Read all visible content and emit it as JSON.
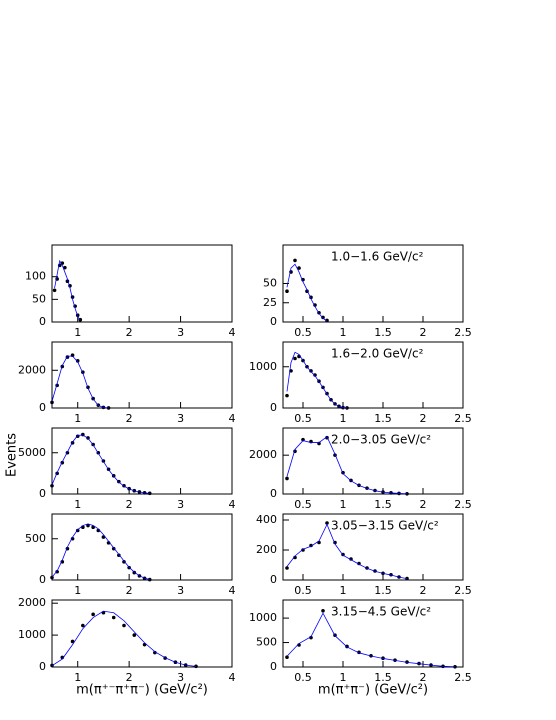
{
  "y_label": "Events",
  "chart_data": [
    {
      "type": "scatter",
      "xlim": [
        0.5,
        4
      ],
      "xticks": [
        1,
        2,
        3,
        4
      ],
      "ylim": [
        0,
        170
      ],
      "yticks": [
        0,
        50,
        100
      ],
      "x": [
        0.55,
        0.6,
        0.65,
        0.7,
        0.75,
        0.8,
        0.85,
        0.9,
        0.95,
        1.0,
        1.05
      ],
      "series": [
        {
          "color": "#000000",
          "values": [
            70,
            95,
            125,
            130,
            120,
            90,
            80,
            55,
            35,
            15,
            5
          ]
        },
        {
          "color": "#0000ff",
          "values": [
            75,
            105,
            135,
            125,
            110,
            95,
            75,
            50,
            30,
            12,
            4
          ]
        }
      ]
    },
    {
      "type": "scatter",
      "xlim": [
        0.25,
        2.5
      ],
      "xticks": [
        0.5,
        1,
        1.5,
        2,
        2.5
      ],
      "ylim": [
        0,
        100
      ],
      "yticks": [
        0,
        25,
        50
      ],
      "annotation": "1.0−1.6 GeV/c²",
      "x": [
        0.3,
        0.35,
        0.4,
        0.45,
        0.5,
        0.55,
        0.6,
        0.65,
        0.7,
        0.75,
        0.8
      ],
      "series": [
        {
          "color": "#000000",
          "values": [
            40,
            65,
            80,
            70,
            55,
            40,
            32,
            22,
            12,
            6,
            2
          ]
        },
        {
          "color": "#0000ff",
          "values": [
            45,
            70,
            75,
            65,
            52,
            42,
            30,
            20,
            11,
            5,
            1
          ]
        }
      ]
    },
    {
      "type": "scatter",
      "xlim": [
        0.5,
        4
      ],
      "xticks": [
        1,
        2,
        3,
        4
      ],
      "ylim": [
        0,
        3500
      ],
      "yticks": [
        0,
        2000
      ],
      "x": [
        0.5,
        0.6,
        0.7,
        0.8,
        0.9,
        1.0,
        1.1,
        1.2,
        1.3,
        1.4,
        1.5,
        1.6
      ],
      "series": [
        {
          "color": "#000000",
          "values": [
            300,
            1200,
            2200,
            2700,
            2800,
            2500,
            1900,
            1100,
            500,
            150,
            30,
            5
          ]
        },
        {
          "color": "#0000ff",
          "values": [
            350,
            1300,
            2250,
            2750,
            2750,
            2450,
            1850,
            1050,
            480,
            140,
            25,
            4
          ]
        }
      ]
    },
    {
      "type": "scatter",
      "xlim": [
        0.25,
        2.5
      ],
      "xticks": [
        0.5,
        1,
        1.5,
        2,
        2.5
      ],
      "ylim": [
        0,
        1600
      ],
      "yticks": [
        0,
        1000
      ],
      "annotation": "1.6−2.0 GeV/c²",
      "x": [
        0.3,
        0.35,
        0.4,
        0.45,
        0.5,
        0.55,
        0.6,
        0.65,
        0.7,
        0.75,
        0.8,
        0.85,
        0.9,
        0.95,
        1.0,
        1.05
      ],
      "series": [
        {
          "color": "#000000",
          "values": [
            300,
            900,
            1200,
            1250,
            1150,
            1000,
            900,
            800,
            650,
            500,
            350,
            200,
            100,
            40,
            10,
            2
          ]
        },
        {
          "color": "#0000ff",
          "values": [
            400,
            1100,
            1350,
            1300,
            1150,
            1000,
            880,
            780,
            640,
            490,
            340,
            190,
            95,
            35,
            8,
            2
          ]
        }
      ]
    },
    {
      "type": "scatter",
      "xlim": [
        0.5,
        4
      ],
      "xticks": [
        1,
        2,
        3,
        4
      ],
      "ylim": [
        0,
        8000
      ],
      "yticks": [
        0,
        5000
      ],
      "x": [
        0.5,
        0.6,
        0.7,
        0.8,
        0.9,
        1.0,
        1.1,
        1.2,
        1.3,
        1.4,
        1.5,
        1.6,
        1.7,
        1.8,
        1.9,
        2.0,
        2.1,
        2.2,
        2.3,
        2.4
      ],
      "series": [
        {
          "color": "#000000",
          "values": [
            1000,
            2500,
            3800,
            5000,
            6200,
            7000,
            7200,
            6800,
            6000,
            5000,
            4000,
            3000,
            2200,
            1500,
            1000,
            650,
            400,
            250,
            150,
            80
          ]
        },
        {
          "color": "#0000ff",
          "values": [
            1100,
            2600,
            3900,
            5100,
            6300,
            7100,
            7150,
            6750,
            5950,
            4950,
            3950,
            2950,
            2150,
            1450,
            950,
            620,
            380,
            240,
            140,
            75
          ]
        }
      ]
    },
    {
      "type": "scatter",
      "xlim": [
        0.25,
        2.5
      ],
      "xticks": [
        0.5,
        1,
        1.5,
        2,
        2.5
      ],
      "ylim": [
        0,
        3400
      ],
      "yticks": [
        0,
        2000
      ],
      "annotation": "2.0−3.05 GeV/c²",
      "x": [
        0.3,
        0.4,
        0.5,
        0.6,
        0.7,
        0.8,
        0.9,
        1.0,
        1.1,
        1.2,
        1.3,
        1.4,
        1.5,
        1.6,
        1.7,
        1.8
      ],
      "series": [
        {
          "color": "#000000",
          "values": [
            800,
            2200,
            2800,
            2700,
            2600,
            2900,
            2000,
            1100,
            700,
            450,
            300,
            180,
            100,
            60,
            30,
            10
          ]
        },
        {
          "color": "#0000ff",
          "values": [
            900,
            2300,
            2750,
            2650,
            2650,
            2950,
            2050,
            1050,
            680,
            440,
            290,
            170,
            95,
            55,
            28,
            10
          ]
        }
      ]
    },
    {
      "type": "scatter",
      "xlim": [
        0.5,
        4
      ],
      "xticks": [
        1,
        2,
        3,
        4
      ],
      "ylim": [
        0,
        800
      ],
      "yticks": [
        0,
        500
      ],
      "x": [
        0.5,
        0.6,
        0.7,
        0.8,
        0.9,
        1.0,
        1.1,
        1.2,
        1.3,
        1.4,
        1.5,
        1.6,
        1.7,
        1.8,
        1.9,
        2.0,
        2.1,
        2.2,
        2.3,
        2.4
      ],
      "series": [
        {
          "color": "#000000",
          "values": [
            30,
            100,
            220,
            380,
            500,
            600,
            640,
            660,
            640,
            600,
            520,
            450,
            380,
            300,
            220,
            150,
            90,
            50,
            20,
            5
          ]
        },
        {
          "color": "#0000ff",
          "values": [
            35,
            110,
            240,
            400,
            520,
            610,
            660,
            680,
            660,
            620,
            550,
            470,
            390,
            310,
            230,
            155,
            95,
            52,
            22,
            6
          ]
        }
      ]
    },
    {
      "type": "scatter",
      "xlim": [
        0.25,
        2.5
      ],
      "xticks": [
        0.5,
        1,
        1.5,
        2,
        2.5
      ],
      "ylim": [
        0,
        440
      ],
      "yticks": [
        0,
        200,
        400
      ],
      "annotation": "3.05−3.15 GeV/c²",
      "x": [
        0.3,
        0.4,
        0.5,
        0.6,
        0.7,
        0.8,
        0.9,
        1.0,
        1.1,
        1.2,
        1.3,
        1.4,
        1.5,
        1.6,
        1.7,
        1.8
      ],
      "series": [
        {
          "color": "#000000",
          "values": [
            80,
            150,
            200,
            230,
            250,
            380,
            250,
            170,
            140,
            110,
            80,
            60,
            45,
            35,
            20,
            10
          ]
        },
        {
          "color": "#0000ff",
          "values": [
            90,
            160,
            205,
            225,
            260,
            370,
            240,
            165,
            135,
            105,
            78,
            58,
            44,
            33,
            19,
            9
          ]
        }
      ]
    },
    {
      "type": "scatter",
      "xlim": [
        0.5,
        4
      ],
      "xticks": [
        1,
        2,
        3,
        4
      ],
      "ylim": [
        0,
        2100
      ],
      "yticks": [
        0,
        1000,
        2000
      ],
      "x": [
        0.5,
        0.7,
        0.9,
        1.1,
        1.3,
        1.5,
        1.7,
        1.9,
        2.1,
        2.3,
        2.5,
        2.7,
        2.9,
        3.1,
        3.3
      ],
      "series": [
        {
          "color": "#000000",
          "values": [
            50,
            300,
            800,
            1300,
            1650,
            1700,
            1550,
            1300,
            1000,
            700,
            450,
            280,
            150,
            60,
            20
          ]
        },
        {
          "color": "#0000ff",
          "values": [
            40,
            250,
            700,
            1200,
            1550,
            1750,
            1700,
            1450,
            1100,
            760,
            480,
            290,
            150,
            60,
            20
          ]
        }
      ]
    },
    {
      "type": "scatter",
      "xlim": [
        0.25,
        2.5
      ],
      "xticks": [
        0.5,
        1,
        1.5,
        2,
        2.5
      ],
      "ylim": [
        0,
        1370
      ],
      "yticks": [
        0,
        500,
        1000
      ],
      "annotation": "3.15−4.5 GeV/c²",
      "x": [
        0.3,
        0.45,
        0.6,
        0.75,
        0.9,
        1.05,
        1.2,
        1.35,
        1.5,
        1.65,
        1.8,
        1.95,
        2.1,
        2.25,
        2.4
      ],
      "series": [
        {
          "color": "#000000",
          "values": [
            200,
            450,
            600,
            1150,
            650,
            420,
            300,
            230,
            180,
            140,
            100,
            70,
            40,
            15,
            5
          ]
        },
        {
          "color": "#0000ff",
          "values": [
            220,
            480,
            620,
            1100,
            640,
            410,
            290,
            225,
            175,
            135,
            95,
            68,
            38,
            14,
            5
          ]
        }
      ]
    }
  ],
  "x_labels": [
    "m(π⁺⁻π⁺π⁻) (GeV/c²)",
    "m(π⁺π⁻) (GeV/c²)"
  ]
}
